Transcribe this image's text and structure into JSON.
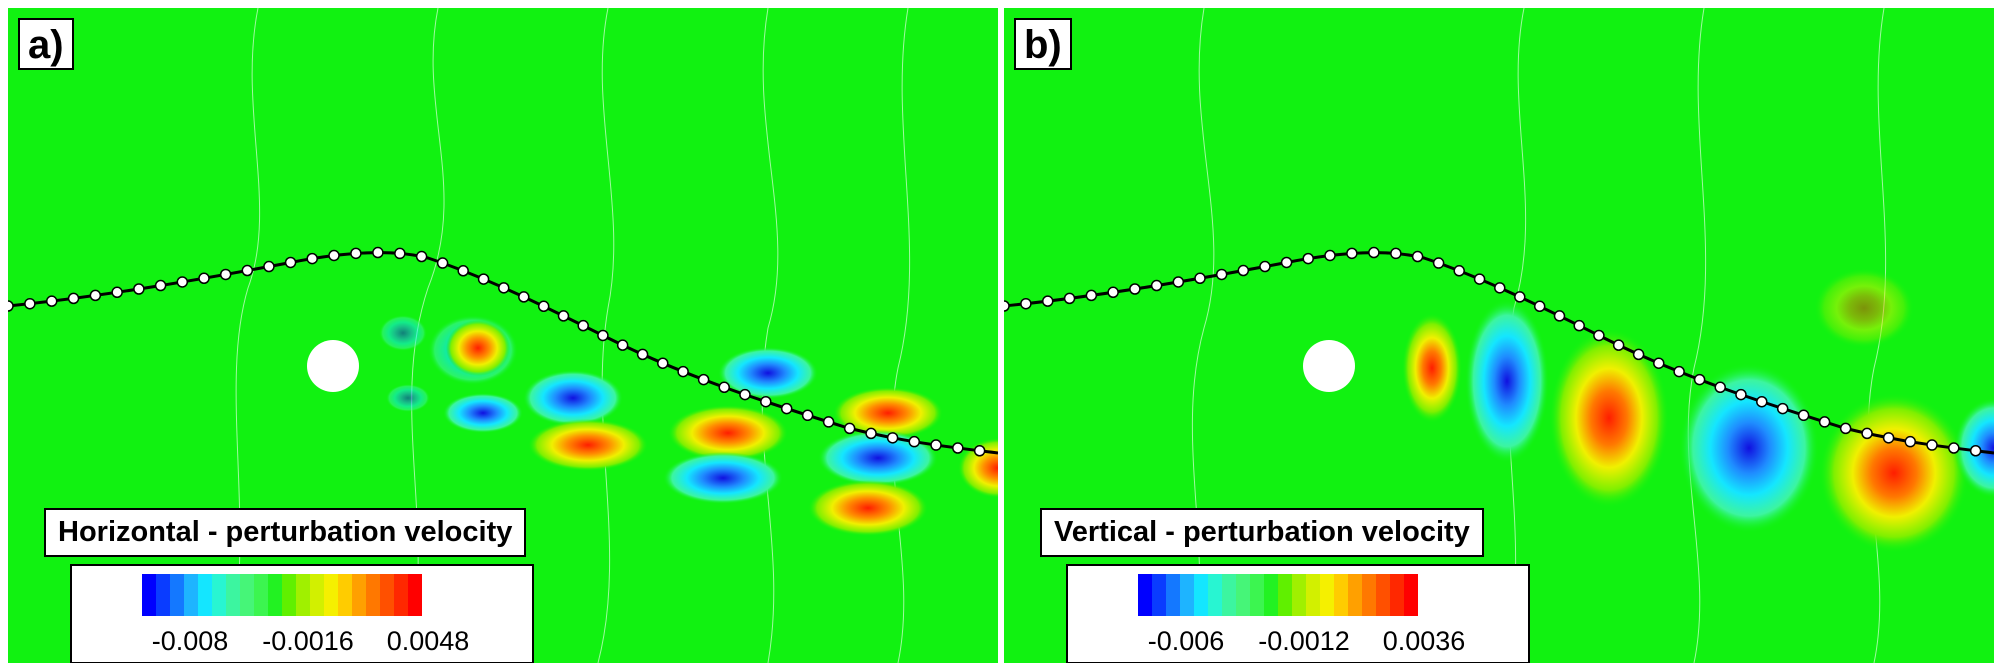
{
  "panels": [
    {
      "label": "a)",
      "title": "Horizontal - perturbation velocity",
      "ticks": [
        "-0.008",
        "-0.0016",
        "0.0048"
      ]
    },
    {
      "label": "b)",
      "title": "Vertical - perturbation velocity",
      "ticks": [
        "-0.006",
        "-0.0012",
        "0.0036"
      ]
    }
  ],
  "colors": {
    "background": "#11f211",
    "colormap": [
      "#0000ff",
      "#0a3cff",
      "#1478ff",
      "#1eb4ff",
      "#14e6ff",
      "#28f5d2",
      "#3cf5a0",
      "#46f578",
      "#3cf550",
      "#22f222",
      "#60f000",
      "#a0f000",
      "#d2f000",
      "#f5f000",
      "#ffcc00",
      "#ffa000",
      "#ff7800",
      "#ff5000",
      "#ff2800",
      "#ff0000"
    ]
  },
  "glyph_icons": [
    "circle-obstacle",
    "interface-dots"
  ]
}
